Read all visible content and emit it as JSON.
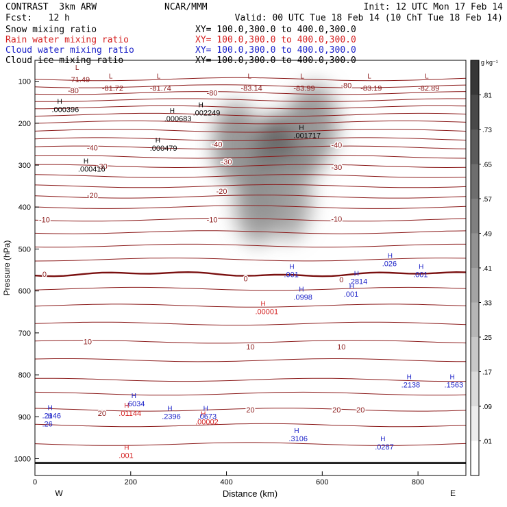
{
  "header": {
    "left_line1": "CONTRAST  3km ARW",
    "center_line1": "NCAR/MMM",
    "right_line1": "Init: 12 UTC Mon 17 Feb 14",
    "left_line2": "Fcst:   12 h",
    "right_line2": "Valid: 00 UTC Tue 18 Feb 14 (10 ChT Tue 18 Feb 14)",
    "rows": [
      {
        "field": "Snow mixing ratio",
        "xy": "XY= 100.0,300.0 to 400.0,300.0",
        "color": "#000000"
      },
      {
        "field": "Rain water mixing ratio",
        "xy": "XY= 100.0,300.0 to 400.0,300.0",
        "color": "#d42020"
      },
      {
        "field": "Cloud water mixing ratio",
        "xy": "XY= 100.0,300.0 to 400.0,300.0",
        "color": "#1c22c8"
      },
      {
        "field": "Cloud ice mixing ratio",
        "xy": "XY= 100.0,300.0 to 400.0,300.0",
        "color": "#000000"
      }
    ]
  },
  "chart_data": {
    "type": "heatmap",
    "xlabel": "Distance (km)",
    "ylabel": "Pressure (hPa)",
    "xlim": [
      0,
      900
    ],
    "ylim": [
      1040,
      50
    ],
    "x_ticks": [
      0,
      200,
      400,
      600,
      800
    ],
    "y_ticks": [
      100,
      200,
      300,
      400,
      500,
      600,
      700,
      800,
      900,
      1000
    ],
    "x_end_labels": {
      "left": "W",
      "right": "E"
    },
    "colorbar": {
      "unit": "g kg⁻¹",
      "levels": [
        ".01",
        ".09",
        ".17",
        ".25",
        ".33",
        ".41",
        ".49",
        ".57",
        ".65",
        ".73",
        ".81"
      ]
    },
    "temperature_isotherms": {
      "color": "#8b1a1a",
      "labels": [
        {
          "x": 80,
          "p": 122,
          "t": "-80"
        },
        {
          "x": 370,
          "p": 128,
          "t": "-80"
        },
        {
          "x": 650,
          "p": 110,
          "t": "-80"
        },
        {
          "x": 120,
          "p": 258,
          "t": "-40"
        },
        {
          "x": 380,
          "p": 250,
          "t": "-40"
        },
        {
          "x": 630,
          "p": 252,
          "t": "-40"
        },
        {
          "x": 140,
          "p": 302,
          "t": "-30"
        },
        {
          "x": 400,
          "p": 292,
          "t": "-30"
        },
        {
          "x": 630,
          "p": 305,
          "t": "-30"
        },
        {
          "x": 120,
          "p": 372,
          "t": "-20"
        },
        {
          "x": 390,
          "p": 362,
          "t": "-20"
        },
        {
          "x": 20,
          "p": 430,
          "t": "-10"
        },
        {
          "x": 370,
          "p": 430,
          "t": "-10"
        },
        {
          "x": 630,
          "p": 428,
          "t": "-10"
        },
        {
          "x": 20,
          "p": 560,
          "t": "0"
        },
        {
          "x": 440,
          "p": 570,
          "t": "0"
        },
        {
          "x": 640,
          "p": 573,
          "t": "0"
        },
        {
          "x": 110,
          "p": 721,
          "t": "10"
        },
        {
          "x": 450,
          "p": 733,
          "t": "10"
        },
        {
          "x": 640,
          "p": 733,
          "t": "10"
        },
        {
          "x": 140,
          "p": 891,
          "t": "20"
        },
        {
          "x": 450,
          "p": 883,
          "t": "20"
        },
        {
          "x": 630,
          "p": 883,
          "t": "20"
        },
        {
          "x": 680,
          "p": 883,
          "t": "20"
        }
      ],
      "lows": [
        {
          "x": 140,
          "p": 98,
          "t": "-81.72"
        },
        {
          "x": 240,
          "p": 98,
          "t": "-81.74"
        },
        {
          "x": 430,
          "p": 98,
          "t": "-83.14"
        },
        {
          "x": 540,
          "p": 98,
          "t": "-83.99"
        },
        {
          "x": 680,
          "p": 98,
          "t": "-83.19"
        },
        {
          "x": 800,
          "p": 98,
          "t": "-82.89"
        },
        {
          "x": 70,
          "p": 78,
          "t": "-71.49"
        }
      ]
    },
    "snow_maxima": [
      {
        "x": 35,
        "p": 170,
        "label": ".000396"
      },
      {
        "x": 330,
        "p": 178,
        "label": ".002249"
      },
      {
        "x": 270,
        "p": 192,
        "label": ".000683"
      },
      {
        "x": 540,
        "p": 232,
        "label": ".001717"
      },
      {
        "x": 240,
        "p": 262,
        "label": ".000479"
      },
      {
        "x": 90,
        "p": 312,
        "label": ".000416"
      }
    ],
    "rain_maxima": [
      {
        "x": 460,
        "p": 652,
        "label": ".00001"
      },
      {
        "x": 175,
        "p": 895,
        "label": ".01144"
      },
      {
        "x": 335,
        "p": 915,
        "label": ".00002"
      },
      {
        "x": 175,
        "p": 995,
        "label": ".001"
      }
    ],
    "cloud_water_maxima": [
      {
        "x": 520,
        "p": 564,
        "label": ".001"
      },
      {
        "x": 540,
        "p": 618,
        "label": ".0998"
      },
      {
        "x": 655,
        "p": 580,
        "label": ".2814"
      },
      {
        "x": 645,
        "p": 610,
        "label": ".001"
      },
      {
        "x": 725,
        "p": 538,
        "label": ".026"
      },
      {
        "x": 790,
        "p": 564,
        "label": ".001"
      },
      {
        "x": 765,
        "p": 827,
        "label": ".2138"
      },
      {
        "x": 855,
        "p": 827,
        "label": ".1563"
      },
      {
        "x": 190,
        "p": 872,
        "label": ".6034"
      },
      {
        "x": 15,
        "p": 900,
        "label": ".2146"
      },
      {
        "x": 15,
        "p": 920,
        "label": ".26"
      },
      {
        "x": 265,
        "p": 902,
        "label": ".2396"
      },
      {
        "x": 340,
        "p": 902,
        "label": ".0673"
      },
      {
        "x": 530,
        "p": 955,
        "label": ".3106"
      },
      {
        "x": 710,
        "p": 975,
        "label": ".0287"
      }
    ],
    "cloud_ice_cores": [
      {
        "x": 500,
        "p": 280,
        "v": 0.81
      },
      {
        "x": 490,
        "p": 340,
        "v": 0.65
      },
      {
        "x": 565,
        "p": 230,
        "v": 0.7
      },
      {
        "x": 420,
        "p": 250,
        "v": 0.55
      },
      {
        "x": 465,
        "p": 390,
        "v": 0.5
      },
      {
        "x": 585,
        "p": 200,
        "v": 0.45
      },
      {
        "x": 530,
        "p": 380,
        "v": 0.45
      }
    ]
  }
}
